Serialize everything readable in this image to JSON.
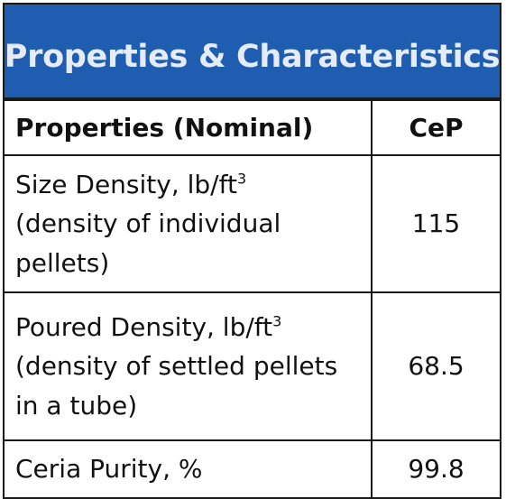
{
  "banner": {
    "title": "Properties & Characteristics",
    "background_color": "#1f5db0",
    "text_color": "#e6ecf7"
  },
  "table": {
    "headers": {
      "property": "Properties (Nominal)",
      "value": "CeP"
    },
    "rows": [
      {
        "label_main": "Size Density, lb/ft",
        "label_superscript": "3",
        "label_note": "(density of individual pellets)",
        "value": "115"
      },
      {
        "label_main": "Poured Density, lb/ft",
        "label_superscript": "3",
        "label_note": "(density of settled pellets in a tube)",
        "value": "68.5"
      },
      {
        "label_main": "Ceria Purity, %",
        "value": "99.8"
      }
    ]
  }
}
